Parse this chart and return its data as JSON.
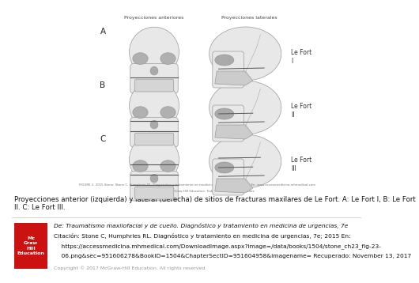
{
  "bg_color": "#ffffff",
  "top_left_label": "Proyecciones anteriores",
  "top_right_label": "Proyecciones laterales",
  "row_labels": [
    "A",
    "B",
    "C"
  ],
  "side_labels_right": [
    "Le Fort\nI",
    "Le Fort\nII",
    "Le Fort\nIII"
  ],
  "caption_text": "Proyecciones anterior (izquierda) y lateral (derecha) de sitios de fracturas maxilares de Le Fort. A: Le Fort I, B: Le Fort II. C: Le Fort III.",
  "source_line1": "De: Traumatismo maxilofacial y de cuello. Diagnóstico y tratamiento en medicina de urgencias, 7e",
  "source_line2": "Citación: Stone C, Humphries RL. Diagnóstico y tratamiento en medicina de urgencias, 7e; 2015 En:",
  "source_line3": "    https://accessmedicina.mhmedical.com/DownloadImage.aspx?image=/data/books/1504/stone_ch23_fig-23-",
  "source_line4": "    06.png&sec=951606278&BookID=1504&ChapterSectID=951604958&imagename= Recuperado: November 13, 2017",
  "copyright_text": "Copyright © 2017 McGraw-Hill Education. All rights reserved",
  "mcgraw_box_color": "#cc1111",
  "fig_note": "FIGURE 1. 2015 Stone; Stone C, Humphries RL. Diagnóstico y tratamiento en medicina de urgencias, 7e; 2015 En: www.accessmedicina.mhmedical.com",
  "fig_note2": "Copyright © 2015 McGraw-Hill Education. Todos los derechos reservados.",
  "caption_fontsize": 6.2,
  "source_fontsize": 5.4,
  "label_fontsize": 5.5,
  "row_label_fontsize": 7.5,
  "skull_color": "#e8e8e8",
  "skull_edge": "#999999",
  "skull_detail": "#bbbbbb",
  "fracture_color": "#555555",
  "dark_area": "#888888"
}
